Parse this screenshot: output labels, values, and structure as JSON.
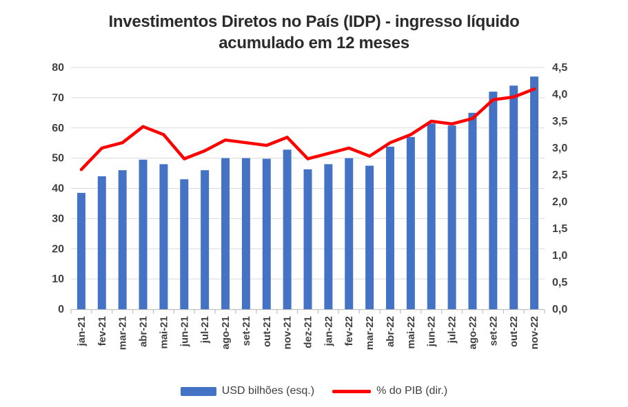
{
  "page": {
    "background": "#ffffff"
  },
  "chart_data": {
    "type": "bar",
    "subtype": "combo-bar-line-dual-axis",
    "title": "Investimentos Diretos no País (IDP) - ingresso líquido acumulado em 12 meses",
    "categories": [
      "jan-21",
      "fev-21",
      "mar-21",
      "abr-21",
      "mai-21",
      "jun-21",
      "jul-21",
      "ago-21",
      "set-21",
      "out-21",
      "nov-21",
      "dez-21",
      "jan-22",
      "fev-22",
      "mar-22",
      "abr-22",
      "mai-22",
      "jun-22",
      "jul-22",
      "ago-22",
      "set-22",
      "out-22",
      "nov-22"
    ],
    "series": [
      {
        "name": "USD bilhões (esq.)",
        "type": "bar",
        "axis": "left",
        "color": "#4472c4",
        "values": [
          38.5,
          44,
          46,
          49.5,
          48,
          43,
          46,
          50,
          50,
          49.8,
          52.8,
          46.3,
          48,
          50,
          47.5,
          53.8,
          57,
          61.5,
          60.8,
          65,
          72,
          74,
          77
        ]
      },
      {
        "name": "% do PIB (dir.)",
        "type": "line",
        "axis": "right",
        "color": "#ff0000",
        "values": [
          2.6,
          3.0,
          3.1,
          3.4,
          3.25,
          2.8,
          2.95,
          3.15,
          3.1,
          3.05,
          3.2,
          2.8,
          2.9,
          3.0,
          2.85,
          3.1,
          3.25,
          3.5,
          3.45,
          3.55,
          3.9,
          3.95,
          4.1
        ]
      }
    ],
    "left_axis": {
      "min": 0,
      "max": 80,
      "step": 10,
      "labels": [
        "0",
        "10",
        "20",
        "30",
        "40",
        "50",
        "60",
        "70",
        "80"
      ]
    },
    "right_axis": {
      "min": 0,
      "max": 4.5,
      "step": 0.5,
      "labels": [
        "0,0",
        "0,5",
        "1,0",
        "1,5",
        "2,0",
        "2,5",
        "3,0",
        "3,5",
        "4,0",
        "4,5"
      ]
    },
    "grid": true,
    "legend_position": "bottom"
  },
  "colors": {
    "bar": "#4472c4",
    "line": "#ff0000",
    "gridline": "#d9d9d9",
    "axis_line": "#bfbfbf",
    "tick_label": "#404040",
    "title": "#2b2b2b"
  }
}
